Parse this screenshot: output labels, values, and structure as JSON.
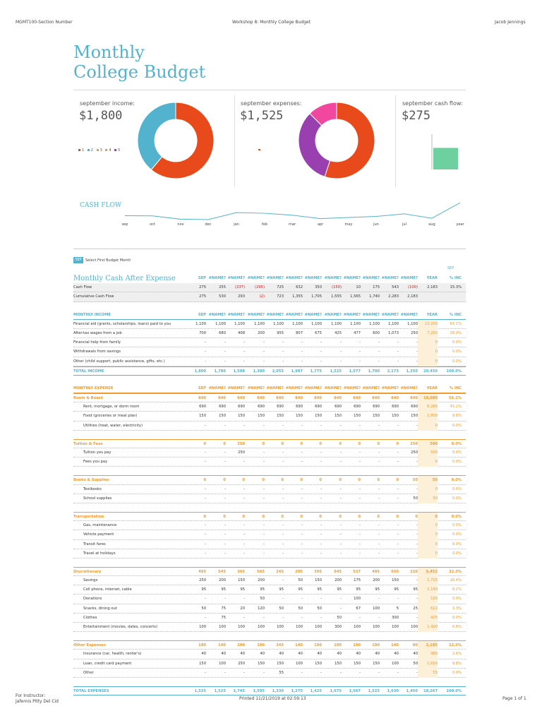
{
  "header": {
    "left": "MGMT100-Section Number",
    "center": "Workshop 8: Monthly College Budget",
    "right": "Jacob Jennings"
  },
  "title": {
    "line1": "Monthly",
    "line2": "College Budget"
  },
  "summary": {
    "income_label": "september income:",
    "income_value": "$1,800",
    "expenses_label": "september expenses:",
    "expenses_value": "$1,525",
    "cashflow_label": "september cash flow:",
    "cashflow_value": "$275"
  },
  "legend": [
    "1",
    "2",
    "3",
    "4",
    "5"
  ],
  "colors": {
    "accent": "#53b3cf",
    "orange": "#f29a2e",
    "red": "#e84a1b",
    "purple": "#9a3fb0",
    "pink": "#f2479e",
    "green": "#6fd09f",
    "negative": "#e01010"
  },
  "cashflow": {
    "title": "CASH FLOW",
    "months": [
      "sep",
      "oct",
      "nov",
      "dec",
      "jan",
      "feb",
      "mar",
      "apr",
      "may",
      "jun",
      "jul",
      "aug",
      "year"
    ]
  },
  "select": {
    "badge": "SEP",
    "label": "Select First Budget Month",
    "right": "SEP"
  },
  "section_title": "Monthly Cash After Expense",
  "cols": [
    "SEP",
    "#NAME?",
    "#NAME?",
    "#NAME?",
    "#NAME?",
    "#NAME?",
    "#NAME?",
    "#NAME?",
    "#NAME?",
    "#NAME?",
    "#NAME?",
    "#NAME?"
  ],
  "col_year": "YEAR",
  "col_pct": "% INC",
  "cash_rows": [
    {
      "label": "Cash Flow",
      "v": [
        "275",
        "255",
        "(237)",
        "(295)",
        "725",
        "632",
        "350",
        "(150)",
        "10",
        "175",
        "543",
        "(100)"
      ],
      "year": "2,183",
      "pct": "15.3%",
      "grey": true
    },
    {
      "label": "Cumulative Cash Flow",
      "v": [
        "275",
        "530",
        "293",
        "(2)",
        "723",
        "1,355",
        "1,705",
        "1,555",
        "1,565",
        "1,740",
        "2,283",
        "2,183"
      ],
      "year": "",
      "pct": "",
      "grey": true
    }
  ],
  "income": {
    "header": "MONTHLY INCOME",
    "rows": [
      {
        "label": "Financial aid (grants, scholarships, loans) paid to you",
        "v": [
          "1,100",
          "1,100",
          "1,100",
          "1,100",
          "1,100",
          "1,100",
          "1,100",
          "1,100",
          "1,100",
          "1,100",
          "1,100",
          "1,100"
        ],
        "year": "13,200",
        "pct": "61.1%"
      },
      {
        "label": "After-tax wages from a job",
        "v": [
          "700",
          "680",
          "408",
          "200",
          "955",
          "807",
          "675",
          "425",
          "477",
          "600",
          "1,073",
          "250"
        ],
        "year": "7,250",
        "pct": "38.9%"
      },
      {
        "label": "Financial help from family",
        "v": [
          "-",
          "-",
          "-",
          "-",
          "-",
          "-",
          "-",
          "-",
          "-",
          "-",
          "-",
          "-"
        ],
        "year": "0",
        "pct": "0.0%"
      },
      {
        "label": "Withdrawals from savings",
        "v": [
          "-",
          "-",
          "-",
          "-",
          "-",
          "-",
          "-",
          "-",
          "-",
          "-",
          "-",
          "-"
        ],
        "year": "0",
        "pct": "0.0%"
      },
      {
        "label": "Other (child support, public assistance, gifts, etc.)",
        "v": [
          "-",
          "-",
          "-",
          "-",
          "-",
          "-",
          "-",
          "-",
          "-",
          "-",
          "-",
          "-"
        ],
        "year": "0",
        "pct": "0.0%"
      }
    ],
    "total": {
      "label": "TOTAL INCOME",
      "v": [
        "1,800",
        "1,780",
        "1,508",
        "1,300",
        "2,055",
        "1,907",
        "1,775",
        "1,525",
        "1,577",
        "1,700",
        "2,173",
        "1,350"
      ],
      "year": "20,450",
      "pct": "100.0%"
    }
  },
  "expense": {
    "header": "MONTHLY EXPENSE",
    "groups": [
      {
        "cat": {
          "label": "Room & Board",
          "v": [
            "840",
            "840",
            "840",
            "840",
            "840",
            "840",
            "840",
            "840",
            "840",
            "840",
            "840",
            "840"
          ],
          "year": "10,080",
          "pct": "55.1%"
        },
        "rows": [
          {
            "label": "Rent, mortgage, or dorm room",
            "v": [
              "690",
              "690",
              "690",
              "690",
              "690",
              "690",
              "690",
              "690",
              "690",
              "690",
              "690",
              "690"
            ],
            "year": "8,280",
            "pct": "45.2%"
          },
          {
            "label": "Food (groceries or meal plan)",
            "v": [
              "150",
              "150",
              "150",
              "150",
              "150",
              "150",
              "150",
              "150",
              "150",
              "150",
              "150",
              "150"
            ],
            "year": "1,800",
            "pct": "9.8%"
          },
          {
            "label": "Utilities (heat, water, electricity)",
            "v": [
              "-",
              "-",
              "-",
              "-",
              "-",
              "-",
              "-",
              "-",
              "-",
              "-",
              "-",
              "-"
            ],
            "year": "0",
            "pct": "0.0%"
          }
        ]
      },
      {
        "cat": {
          "label": "Tuition & Fees",
          "v": [
            "0",
            "0",
            "250",
            "0",
            "0",
            "0",
            "0",
            "0",
            "0",
            "0",
            "0",
            "250"
          ],
          "year": "500",
          "pct": "0.0%"
        },
        "rows": [
          {
            "label": "Tuition you pay",
            "v": [
              "-",
              "-",
              "250",
              "-",
              "-",
              "-",
              "-",
              "-",
              "-",
              "-",
              "-",
              "250"
            ],
            "year": "500",
            "pct": "0.0%"
          },
          {
            "label": "Fees you pay",
            "v": [
              "-",
              "-",
              "-",
              "-",
              "-",
              "-",
              "-",
              "-",
              "-",
              "-",
              "-",
              "-"
            ],
            "year": "0",
            "pct": "0.0%"
          }
        ]
      },
      {
        "cat": {
          "label": "Books & Supplies",
          "v": [
            "0",
            "0",
            "0",
            "0",
            "0",
            "0",
            "0",
            "0",
            "0",
            "0",
            "0",
            "50"
          ],
          "year": "50",
          "pct": "0.0%"
        },
        "rows": [
          {
            "label": "Textbooks",
            "v": [
              "-",
              "-",
              "-",
              "-",
              "-",
              "-",
              "-",
              "-",
              "-",
              "-",
              "-",
              "-"
            ],
            "year": "0",
            "pct": "0.0%"
          },
          {
            "label": "School supplies",
            "v": [
              "-",
              "-",
              "-",
              "-",
              "-",
              "-",
              "-",
              "-",
              "-",
              "-",
              "-",
              "50"
            ],
            "year": "50",
            "pct": "0.0%"
          }
        ]
      },
      {
        "cat": {
          "label": "Transportation",
          "v": [
            "0",
            "0",
            "0",
            "0",
            "0",
            "0",
            "0",
            "0",
            "0",
            "0",
            "0",
            "0"
          ],
          "year": "0",
          "pct": "0.0%"
        },
        "rows": [
          {
            "label": "Gas, maintenance",
            "v": [
              "-",
              "-",
              "-",
              "-",
              "-",
              "-",
              "-",
              "-",
              "-",
              "-",
              "-",
              "-"
            ],
            "year": "0",
            "pct": "0.0%"
          },
          {
            "label": "Vehicle payment",
            "v": [
              "-",
              "-",
              "-",
              "-",
              "-",
              "-",
              "-",
              "-",
              "-",
              "-",
              "-",
              "-"
            ],
            "year": "0",
            "pct": "0.0%"
          },
          {
            "label": "Transit fares",
            "v": [
              "-",
              "-",
              "-",
              "-",
              "-",
              "-",
              "-",
              "-",
              "-",
              "-",
              "-",
              "-"
            ],
            "year": "0",
            "pct": "0.0%"
          },
          {
            "label": "Travel at holidays",
            "v": [
              "-",
              "-",
              "-",
              "-",
              "-",
              "-",
              "-",
              "-",
              "-",
              "-",
              "-",
              "-"
            ],
            "year": "0",
            "pct": "0.0%"
          }
        ]
      },
      {
        "cat": {
          "label": "Discretionary",
          "v": [
            "495",
            "545",
            "365",
            "565",
            "245",
            "295",
            "395",
            "645",
            "537",
            "495",
            "650",
            "220"
          ],
          "year": "5,452",
          "pct": "32.3%"
        },
        "rows": [
          {
            "label": "Savings",
            "v": [
              "250",
              "200",
              "150",
              "200",
              "-",
              "50",
              "150",
              "200",
              "175",
              "200",
              "150",
              "-"
            ],
            "year": "1,725",
            "pct": "16.4%"
          },
          {
            "label": "Cell phone, internet, cable",
            "v": [
              "95",
              "95",
              "95",
              "95",
              "95",
              "95",
              "95",
              "95",
              "95",
              "95",
              "95",
              "95"
            ],
            "year": "1,140",
            "pct": "6.2%"
          },
          {
            "label": "Donations",
            "v": [
              "-",
              "-",
              "-",
              "50",
              "-",
              "-",
              "-",
              "-",
              "100",
              "-",
              "-",
              "-"
            ],
            "year": "150",
            "pct": "0.0%"
          },
          {
            "label": "Snacks, dining out",
            "v": [
              "50",
              "75",
              "20",
              "120",
              "50",
              "50",
              "50",
              "-",
              "67",
              "100",
              "5",
              "25"
            ],
            "year": "612",
            "pct": "3.3%"
          },
          {
            "label": "Clothes",
            "v": [
              "-",
              "75",
              "-",
              "-",
              "-",
              "-",
              "-",
              "50",
              "-",
              "-",
              "300",
              "-"
            ],
            "year": "425",
            "pct": "0.0%"
          },
          {
            "label": "Entertainment (movies, dates, concerts)",
            "v": [
              "100",
              "100",
              "100",
              "100",
              "100",
              "100",
              "100",
              "300",
              "100",
              "100",
              "100",
              "100"
            ],
            "year": "1,400",
            "pct": "6.6%"
          }
        ]
      },
      {
        "cat": {
          "label": "Other Expenses",
          "v": [
            "190",
            "140",
            "290",
            "190",
            "245",
            "140",
            "190",
            "190",
            "190",
            "190",
            "140",
            "90"
          ],
          "year": "2,185",
          "pct": "12.5%"
        },
        "rows": [
          {
            "label": "Insurance (car, health, renter's)",
            "v": [
              "40",
              "40",
              "40",
              "40",
              "40",
              "40",
              "40",
              "40",
              "40",
              "40",
              "40",
              "40"
            ],
            "year": "480",
            "pct": "2.6%"
          },
          {
            "label": "Loan, credit card payment",
            "v": [
              "150",
              "100",
              "250",
              "150",
              "150",
              "100",
              "150",
              "150",
              "150",
              "150",
              "100",
              "50"
            ],
            "year": "1,650",
            "pct": "9.8%"
          },
          {
            "label": "Other",
            "v": [
              "-",
              "-",
              "-",
              "-",
              "55",
              "-",
              "-",
              "-",
              "-",
              "-",
              "-",
              "-"
            ],
            "year": "55",
            "pct": "0.0%"
          }
        ]
      }
    ],
    "total": {
      "label": "TOTAL EXPENSES",
      "v": [
        "1,525",
        "1,525",
        "1,745",
        "1,595",
        "1,330",
        "1,275",
        "1,425",
        "1,675",
        "1,567",
        "1,525",
        "1,630",
        "1,450"
      ],
      "year": "18,267",
      "pct": "100.0%"
    }
  },
  "footer": {
    "left1": "For Instructor:",
    "left2": "Jafernis Pitty Del Cid",
    "center": "Printed 11/21/2019 at 02:59:13",
    "right": "Page 1 of 1"
  },
  "chart_data": [
    {
      "type": "pie",
      "title": "",
      "slices": [
        {
          "name": "1",
          "value": 1100
        },
        {
          "name": "2",
          "value": 700
        }
      ]
    },
    {
      "type": "pie",
      "title": "",
      "slices": [
        {
          "name": "Room & Board",
          "value": 840
        },
        {
          "name": "Discretionary",
          "value": 495
        },
        {
          "name": "Other Expenses",
          "value": 190
        }
      ]
    },
    {
      "type": "bar",
      "title": "",
      "categories": [
        "Cash Flow"
      ],
      "values": [
        275
      ]
    },
    {
      "type": "line",
      "title": "CASH FLOW",
      "categories": [
        "sep",
        "oct",
        "nov",
        "dec",
        "jan",
        "feb",
        "mar",
        "apr",
        "may",
        "jun",
        "jul",
        "aug",
        "year"
      ],
      "values": [
        275,
        255,
        -237,
        -295,
        725,
        632,
        350,
        -150,
        10,
        175,
        543,
        -100,
        2183
      ]
    }
  ]
}
